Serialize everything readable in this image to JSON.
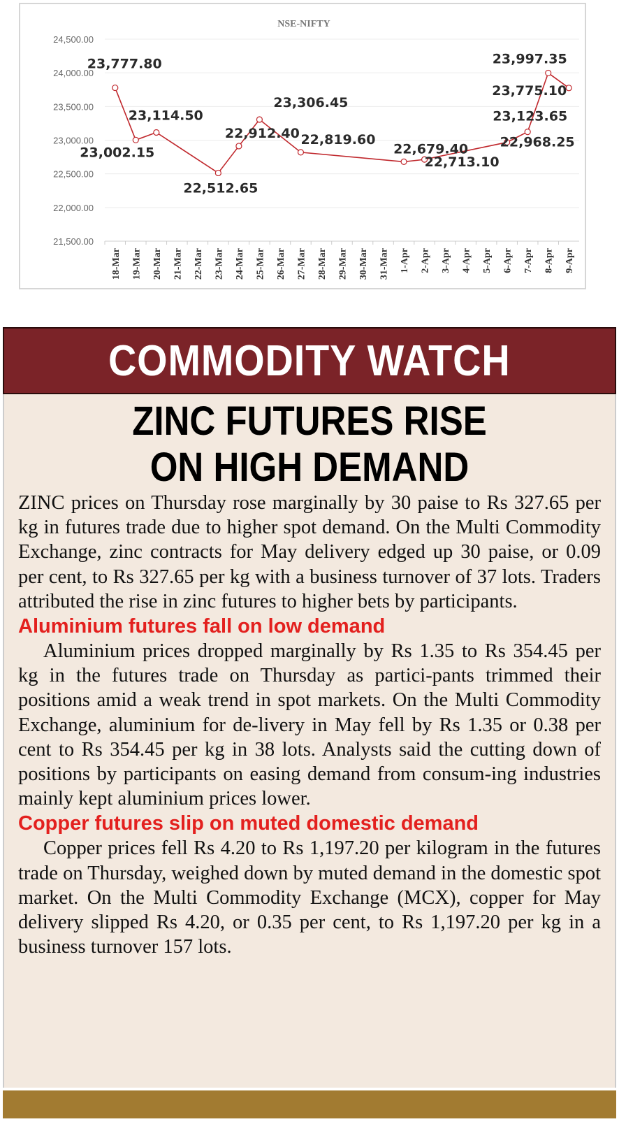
{
  "chart_data": {
    "type": "line",
    "title": "NSE-NIFTY",
    "xlabel": "",
    "ylabel": "",
    "ylim": [
      21500,
      24500
    ],
    "yticks": [
      "24,500.00",
      "24,000.00",
      "23,500.00",
      "23,000.00",
      "22,500.00",
      "22,000.00",
      "21,500.00"
    ],
    "ytick_values": [
      24500,
      24000,
      23500,
      23000,
      22500,
      22000,
      21500
    ],
    "grid": true,
    "categories": [
      "18-Mar",
      "19-Mar",
      "20-Mar",
      "21-Mar",
      "22-Mar",
      "23-Mar",
      "24-Mar",
      "25-Mar",
      "26-Mar",
      "27-Mar",
      "28-Mar",
      "29-Mar",
      "30-Mar",
      "31-Mar",
      "1-Apr",
      "2-Apr",
      "3-Apr",
      "4-Apr",
      "5-Apr",
      "6-Apr",
      "7-Apr",
      "8-Apr",
      "9-Apr"
    ],
    "series": [
      {
        "name": "NSE-NIFTY",
        "color": "#c0282d",
        "points": [
          {
            "x": "18-Mar",
            "y": 23777.8,
            "label": "23,777.80"
          },
          {
            "x": "19-Mar",
            "y": 23002.15,
            "label": "23,002.15"
          },
          {
            "x": "20-Mar",
            "y": 23114.5,
            "label": "23,114.50"
          },
          {
            "x": "23-Mar",
            "y": 22512.65,
            "label": "22,512.65"
          },
          {
            "x": "24-Mar",
            "y": 22912.4,
            "label": "22,912.40"
          },
          {
            "x": "25-Mar",
            "y": 23306.45,
            "label": "23,306.45"
          },
          {
            "x": "27-Mar",
            "y": 22819.6,
            "label": "22,819.60"
          },
          {
            "x": "1-Apr",
            "y": 22679.4,
            "label": "22,679.40"
          },
          {
            "x": "2-Apr",
            "y": 22713.1,
            "label": "22,713.10"
          },
          {
            "x": "6-Apr",
            "y": 22968.25,
            "label": "22,968.25"
          },
          {
            "x": "7-Apr",
            "y": 23123.65,
            "label": "23,123.65"
          },
          {
            "x": "8-Apr",
            "y": 23997.35,
            "label": "23,997.35"
          },
          {
            "x": "9-Apr",
            "y": 23775.1,
            "label": "23,775.10"
          }
        ]
      }
    ]
  },
  "section": {
    "title": "COMMODITY WATCH"
  },
  "article": {
    "headline_line1": "ZINC FUTURES RISE",
    "headline_line2": "ON HIGH DEMAND",
    "p1": "ZINC prices on Thursday rose marginally by 30 paise to Rs 327.65 per kg in futures trade due to higher spot demand. On the Multi Commodity Exchange, zinc contracts for May delivery edged up 30 paise, or 0.09 per cent, to Rs 327.65 per kg with a business turnover of 37 lots. Traders attributed the rise in zinc futures to higher bets by participants.",
    "sub2": "Aluminium futures fall on low demand",
    "p2": "Aluminium prices dropped marginally by Rs 1.35 to Rs 354.45 per kg in the futures trade on Thursday as partici-pants trimmed their positions amid a weak trend in spot markets. On the Multi Commodity Exchange, aluminium for de-livery in May fell by Rs 1.35 or 0.38 per cent to Rs 354.45 per kg in 38 lots. Analysts said the cutting down of positions by participants on easing demand from consum-ing industries mainly kept aluminium prices lower.",
    "sub3": "Copper futures slip on muted domestic demand",
    "p3": "Copper prices fell Rs 4.20 to Rs 1,197.20 per kilogram in the futures trade on Thursday, weighed down by muted demand in the domestic spot market. On the Multi Commodity Exchange (MCX), copper for May delivery slipped Rs 4.20, or 0.35 per cent, to Rs 1,197.20 per kg in a business turnover 157 lots."
  }
}
